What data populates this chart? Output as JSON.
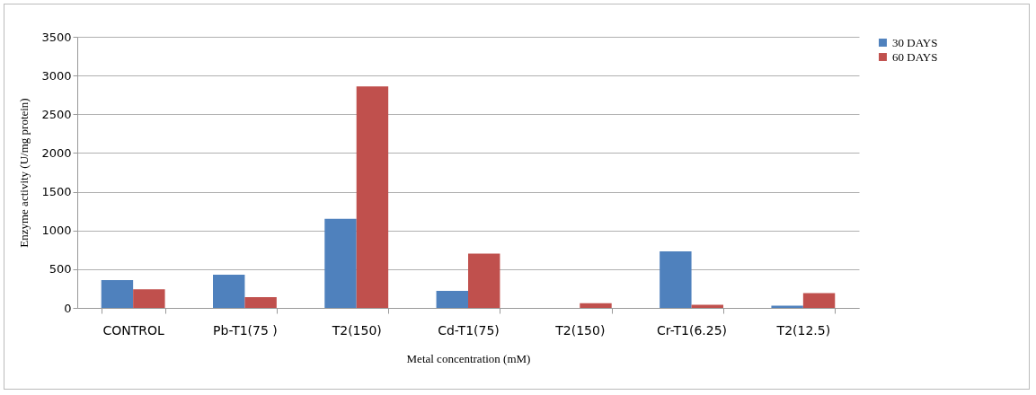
{
  "chart_data": {
    "type": "bar",
    "xlabel": "Metal concentration (mM)",
    "ylabel": "Enzyme activity (U/mg protein)",
    "categories": [
      "CONTROL",
      "Pb-T1(75 )",
      "T2(150)",
      "Cd-T1(75)",
      "T2(150)",
      "Cr-T1(6.25)",
      "T2(12.5)"
    ],
    "series": [
      {
        "name": "30 DAYS",
        "color": "#4f81bd",
        "values": [
          360,
          430,
          1150,
          220,
          0,
          730,
          30
        ]
      },
      {
        "name": "60 DAYS",
        "color": "#c0504d",
        "values": [
          240,
          140,
          2860,
          700,
          60,
          40,
          190
        ]
      }
    ],
    "ylim": [
      0,
      3500
    ],
    "yticks": [
      0,
      500,
      1000,
      1500,
      2000,
      2500,
      3000,
      3500
    ],
    "grid": "y",
    "legend": "right"
  }
}
